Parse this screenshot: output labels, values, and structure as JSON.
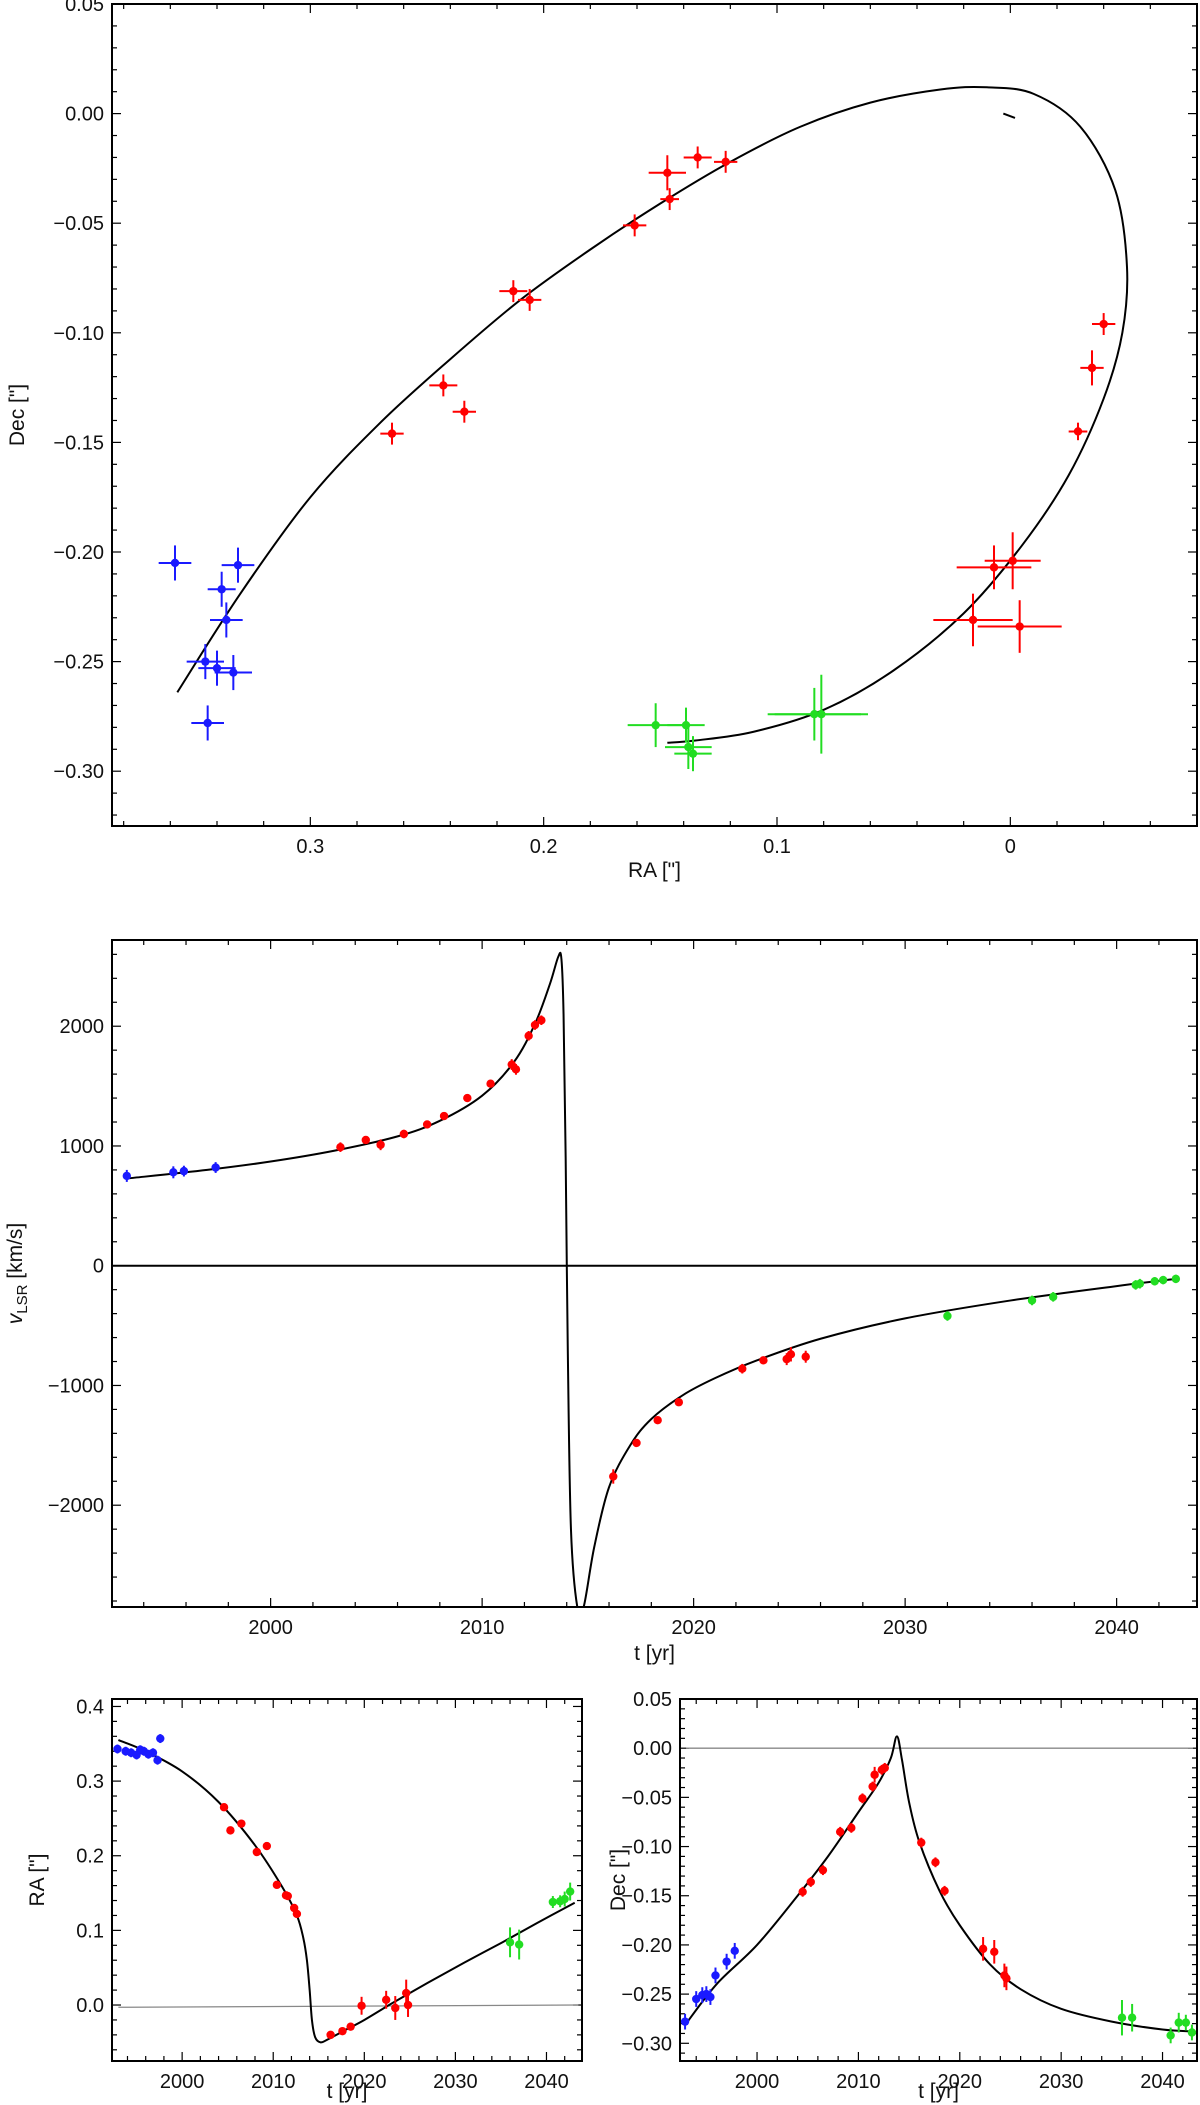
{
  "colors": {
    "blue": "#1a1aff",
    "red": "#ff0000",
    "green": "#22dd22",
    "curve": "#000000",
    "zero_line": "#888888"
  },
  "chart_data": [
    {
      "id": "orbit",
      "type": "scatter",
      "title": "",
      "xlabel": "RA [\"]",
      "ylabel": "Dec [\"]",
      "xlim": [
        0.385,
        -0.08
      ],
      "ylim": [
        -0.325,
        0.05
      ],
      "xticks": [
        0.3,
        0.2,
        0.1,
        0
      ],
      "xtick_labels": [
        "0.3",
        "0.2",
        "0.1",
        "0"
      ],
      "yticks": [
        0.05,
        0.0,
        -0.05,
        -0.1,
        -0.15,
        -0.2,
        -0.25,
        -0.3
      ],
      "ytick_labels": [
        "0.05",
        "0.00",
        "−0.05",
        "−0.10",
        "−0.15",
        "−0.20",
        "−0.25",
        "−0.30"
      ],
      "model_curve": {
        "name": "orbit model",
        "x": [
          0.357,
          0.33,
          0.3,
          0.27,
          0.24,
          0.21,
          0.18,
          0.15,
          0.12,
          0.09,
          0.06,
          0.03,
          0.01,
          -0.01,
          -0.03,
          -0.045,
          -0.05,
          -0.048,
          -0.04,
          -0.025,
          -0.005,
          0.02,
          0.05,
          0.08,
          0.11,
          0.135,
          0.147
        ],
        "y": [
          -0.264,
          -0.219,
          -0.175,
          -0.141,
          -0.112,
          -0.085,
          -0.062,
          -0.041,
          -0.022,
          -0.006,
          0.005,
          0.011,
          0.012,
          0.009,
          -0.006,
          -0.035,
          -0.07,
          -0.1,
          -0.13,
          -0.165,
          -0.197,
          -0.228,
          -0.254,
          -0.272,
          -0.282,
          -0.286,
          -0.287
        ]
      },
      "extra_segment": {
        "x": [
          0.003,
          -0.002
        ],
        "y": [
          -0.0,
          -0.002
        ]
      },
      "series": [
        {
          "name": "blue",
          "color": "blue",
          "x": [
            0.358,
            0.338,
            0.331,
            0.336,
            0.345,
            0.34,
            0.333,
            0.344
          ],
          "y": [
            -0.205,
            -0.217,
            -0.206,
            -0.231,
            -0.25,
            -0.253,
            -0.255,
            -0.278
          ],
          "xerr": [
            0.007,
            0.006,
            0.007,
            0.007,
            0.008,
            0.008,
            0.008,
            0.007
          ],
          "yerr": [
            0.008,
            0.008,
            0.008,
            0.008,
            0.008,
            0.008,
            0.008,
            0.008
          ]
        },
        {
          "name": "red",
          "color": "red",
          "x": [
            0.134,
            0.122,
            0.147,
            0.146,
            0.161,
            0.213,
            0.206,
            0.243,
            0.234,
            0.265,
            -0.04,
            -0.035,
            -0.029,
            -0.001,
            0.007,
            -0.004,
            0.016
          ],
          "y": [
            -0.02,
            -0.022,
            -0.027,
            -0.039,
            -0.051,
            -0.081,
            -0.085,
            -0.124,
            -0.136,
            -0.146,
            -0.096,
            -0.116,
            -0.145,
            -0.204,
            -0.207,
            -0.234,
            -0.231
          ],
          "xerr": [
            0.006,
            0.005,
            0.008,
            0.004,
            0.005,
            0.006,
            0.005,
            0.006,
            0.005,
            0.005,
            0.005,
            0.005,
            0.004,
            0.012,
            0.016,
            0.018,
            0.017
          ],
          "yerr": [
            0.005,
            0.005,
            0.008,
            0.005,
            0.005,
            0.005,
            0.005,
            0.005,
            0.005,
            0.005,
            0.005,
            0.008,
            0.004,
            0.013,
            0.01,
            0.012,
            0.012
          ]
        },
        {
          "name": "green",
          "color": "green",
          "x": [
            0.152,
            0.139,
            0.138,
            0.136,
            0.084,
            0.081
          ],
          "y": [
            -0.279,
            -0.279,
            -0.289,
            -0.292,
            -0.274,
            -0.274
          ],
          "xerr": [
            0.012,
            0.008,
            0.01,
            0.008,
            0.02,
            0.02
          ],
          "yerr": [
            0.01,
            0.008,
            0.01,
            0.008,
            0.012,
            0.018
          ]
        }
      ]
    },
    {
      "id": "velocity",
      "type": "scatter",
      "title": "",
      "xlabel": "t [yr]",
      "ylabel": "v",
      "ylabel_sub": "LSR",
      "ylabel_unit": " [km/s]",
      "xlim": [
        1992.5,
        2043.8
      ],
      "ylim": [
        -2850,
        2720
      ],
      "xticks": [
        2000,
        2010,
        2020,
        2030,
        2040
      ],
      "xtick_labels": [
        "2000",
        "2010",
        "2020",
        "2030",
        "2040"
      ],
      "yticks": [
        2000,
        1000,
        0,
        -1000,
        -2000
      ],
      "ytick_labels": [
        "2000",
        "1000",
        "0",
        "−1000",
        "−2000"
      ],
      "model_curve": {
        "name": "velocity model",
        "x": [
          1993.3,
          1997,
          2000,
          2003,
          2006,
          2008,
          2010,
          2011.5,
          2012.5,
          2013.2,
          2013.6,
          2013.75,
          2013.85,
          2013.95,
          2014.05,
          2014.2,
          2014.5,
          2014.8,
          2015.3,
          2016,
          2017,
          2018,
          2019.5,
          2021,
          2023,
          2026,
          2030,
          2035,
          2040,
          2042.8
        ],
        "y": [
          730,
          800,
          870,
          960,
          1080,
          1210,
          1420,
          1700,
          2020,
          2350,
          2580,
          2560,
          2100,
          900,
          -700,
          -2200,
          -2850,
          -2850,
          -2350,
          -1850,
          -1500,
          -1280,
          -1080,
          -940,
          -790,
          -610,
          -440,
          -290,
          -170,
          -110
        ]
      },
      "zero_line": {
        "y": 0
      },
      "series": [
        {
          "name": "blue",
          "color": "blue",
          "x": [
            1993.2,
            1995.4,
            1995.9,
            1997.4
          ],
          "y": [
            750,
            780,
            790,
            820
          ],
          "yerr": [
            50,
            50,
            45,
            45
          ]
        },
        {
          "name": "red",
          "color": "red",
          "x": [
            2003.3,
            2004.5,
            2005.2,
            2006.3,
            2007.4,
            2008.2,
            2009.3,
            2010.4,
            2011.4,
            2011.6,
            2012.2,
            2012.5,
            2012.8,
            2016.2,
            2017.3,
            2018.3,
            2019.3,
            2022.3,
            2023.3,
            2024.4,
            2024.6,
            2025.3
          ],
          "y": [
            990,
            1050,
            1010,
            1100,
            1180,
            1250,
            1400,
            1520,
            1680,
            1640,
            1920,
            2010,
            2050,
            -1760,
            -1480,
            -1290,
            -1140,
            -860,
            -790,
            -780,
            -740,
            -760
          ],
          "yerr": [
            40,
            30,
            45,
            35,
            30,
            30,
            30,
            30,
            45,
            45,
            40,
            40,
            40,
            60,
            30,
            30,
            30,
            40,
            30,
            50,
            60,
            50
          ]
        },
        {
          "name": "green",
          "color": "green",
          "x": [
            2032.0,
            2036.0,
            2037.0,
            2040.9,
            2041.1,
            2041.8,
            2042.2,
            2042.8
          ],
          "y": [
            -420,
            -290,
            -260,
            -160,
            -150,
            -130,
            -120,
            -110
          ],
          "yerr": [
            40,
            40,
            40,
            40,
            40,
            35,
            35,
            35
          ]
        }
      ]
    },
    {
      "id": "ra_time",
      "type": "scatter",
      "title": "",
      "xlabel": "t [yr]",
      "ylabel": "RA [\"]",
      "xlim": [
        1992.3,
        2043.9
      ],
      "ylim": [
        -0.075,
        0.41
      ],
      "xticks": [
        2000,
        2010,
        2020,
        2030,
        2040
      ],
      "xtick_labels": [
        "2000",
        "2010",
        "2020",
        "2030",
        "2040"
      ],
      "yticks": [
        0.4,
        0.3,
        0.2,
        0.1,
        0.0
      ],
      "ytick_labels": [
        "0.4",
        "0.3",
        "0.2",
        "0.1",
        "0.0"
      ],
      "model_curve": {
        "name": "RA model",
        "x": [
          1993.0,
          1996,
          2000,
          2004,
          2008,
          2011,
          2012.6,
          2013.3,
          2013.7,
          2014.0,
          2014.25,
          2014.6,
          2015.2,
          2016,
          2018,
          2020,
          2023,
          2027,
          2031,
          2035,
          2039,
          2043.1
        ],
        "y": [
          0.355,
          0.34,
          0.313,
          0.272,
          0.214,
          0.158,
          0.12,
          0.09,
          0.06,
          0.02,
          -0.02,
          -0.043,
          -0.05,
          -0.046,
          -0.033,
          -0.02,
          0.002,
          0.03,
          0.057,
          0.083,
          0.11,
          0.137
        ]
      },
      "zero_line": {
        "x": [
          1993.0,
          2043.5
        ],
        "y": [
          -0.003,
          0.0
        ]
      },
      "series": [
        {
          "name": "blue",
          "color": "blue",
          "x": [
            1992.9,
            1993.8,
            1994.4,
            1995.0,
            1995.4,
            1995.8,
            1996.3,
            1996.8,
            1997.3,
            1997.6
          ],
          "y": [
            0.343,
            0.34,
            0.338,
            0.335,
            0.342,
            0.34,
            0.336,
            0.338,
            0.328,
            0.357
          ],
          "yerr": [
            0.006,
            0.006,
            0.006,
            0.006,
            0.006,
            0.006,
            0.006,
            0.006,
            0.006,
            0.006
          ]
        },
        {
          "name": "red",
          "color": "red",
          "x": [
            2004.6,
            2005.3,
            2006.5,
            2008.2,
            2009.3,
            2010.4,
            2011.4,
            2011.6,
            2012.3,
            2012.6,
            2016.3,
            2017.6,
            2018.5,
            2019.7,
            2022.4,
            2023.4,
            2024.6,
            2024.8
          ],
          "y": [
            0.265,
            0.234,
            0.243,
            0.205,
            0.213,
            0.161,
            0.147,
            0.146,
            0.13,
            0.122,
            -0.04,
            -0.035,
            -0.029,
            -0.001,
            0.007,
            -0.004,
            0.016,
            0.0
          ],
          "yerr": [
            0.005,
            0.005,
            0.005,
            0.005,
            0.005,
            0.005,
            0.005,
            0.005,
            0.005,
            0.005,
            0.005,
            0.005,
            0.005,
            0.012,
            0.012,
            0.016,
            0.018,
            0.016
          ]
        },
        {
          "name": "green",
          "color": "green",
          "x": [
            2036.0,
            2037.0,
            2040.7,
            2041.5,
            2042.0,
            2042.6
          ],
          "y": [
            0.084,
            0.081,
            0.138,
            0.139,
            0.142,
            0.152
          ],
          "yerr": [
            0.02,
            0.02,
            0.008,
            0.008,
            0.01,
            0.012
          ]
        }
      ]
    },
    {
      "id": "dec_time",
      "type": "scatter",
      "title": "",
      "xlabel": "t [yr]",
      "ylabel": "Dec [\"]",
      "xlim": [
        1992.4,
        2043.4
      ],
      "ylim": [
        -0.318,
        0.05
      ],
      "xticks": [
        2000,
        2010,
        2020,
        2030,
        2040
      ],
      "xtick_labels": [
        "2000",
        "2010",
        "2020",
        "2030",
        "2040"
      ],
      "yticks": [
        0.05,
        0.0,
        -0.05,
        -0.1,
        -0.15,
        -0.2,
        -0.25,
        -0.3
      ],
      "ytick_labels": [
        "0.05",
        "0.00",
        "−0.05",
        "−0.10",
        "−0.15",
        "−0.20",
        "−0.25",
        "−0.30"
      ],
      "model_curve": {
        "name": "Dec model",
        "x": [
          1993.0,
          1996,
          2000,
          2004,
          2007,
          2010,
          2012,
          2013.2,
          2013.8,
          2014.3,
          2015,
          2016,
          2018,
          2020,
          2023,
          2026,
          2030,
          2035,
          2040,
          2043.0
        ],
        "y": [
          -0.28,
          -0.24,
          -0.2,
          -0.15,
          -0.11,
          -0.065,
          -0.035,
          -0.01,
          0.012,
          -0.012,
          -0.055,
          -0.095,
          -0.145,
          -0.18,
          -0.22,
          -0.245,
          -0.265,
          -0.278,
          -0.286,
          -0.288
        ]
      },
      "zero_line": {
        "x": [
          1993.0,
          2043.0
        ],
        "y": [
          0.0,
          0.0
        ]
      },
      "series": [
        {
          "name": "blue",
          "color": "blue",
          "x": [
            1992.9,
            1994.0,
            1994.6,
            1995.0,
            1995.4,
            1995.9,
            1997.0,
            1997.8
          ],
          "y": [
            -0.278,
            -0.255,
            -0.251,
            -0.25,
            -0.253,
            -0.231,
            -0.217,
            -0.206
          ],
          "yerr": [
            0.008,
            0.008,
            0.008,
            0.008,
            0.008,
            0.008,
            0.008,
            0.008
          ]
        },
        {
          "name": "red",
          "color": "red",
          "x": [
            2004.5,
            2005.3,
            2006.5,
            2008.2,
            2009.3,
            2010.4,
            2011.4,
            2011.6,
            2012.3,
            2012.6,
            2016.2,
            2017.6,
            2018.5,
            2022.3,
            2023.4,
            2024.4,
            2024.6
          ],
          "y": [
            -0.146,
            -0.136,
            -0.124,
            -0.085,
            -0.081,
            -0.051,
            -0.039,
            -0.027,
            -0.022,
            -0.02,
            -0.096,
            -0.116,
            -0.145,
            -0.204,
            -0.207,
            -0.231,
            -0.234
          ],
          "yerr": [
            0.005,
            0.005,
            0.005,
            0.005,
            0.005,
            0.005,
            0.005,
            0.008,
            0.005,
            0.005,
            0.005,
            0.005,
            0.005,
            0.012,
            0.012,
            0.012,
            0.012
          ]
        },
        {
          "name": "green",
          "color": "green",
          "x": [
            2036.0,
            2037.0,
            2040.8,
            2041.6,
            2042.3,
            2042.9
          ],
          "y": [
            -0.274,
            -0.274,
            -0.292,
            -0.279,
            -0.279,
            -0.289
          ],
          "yerr": [
            0.018,
            0.014,
            0.008,
            0.01,
            0.008,
            0.008
          ]
        }
      ]
    }
  ]
}
